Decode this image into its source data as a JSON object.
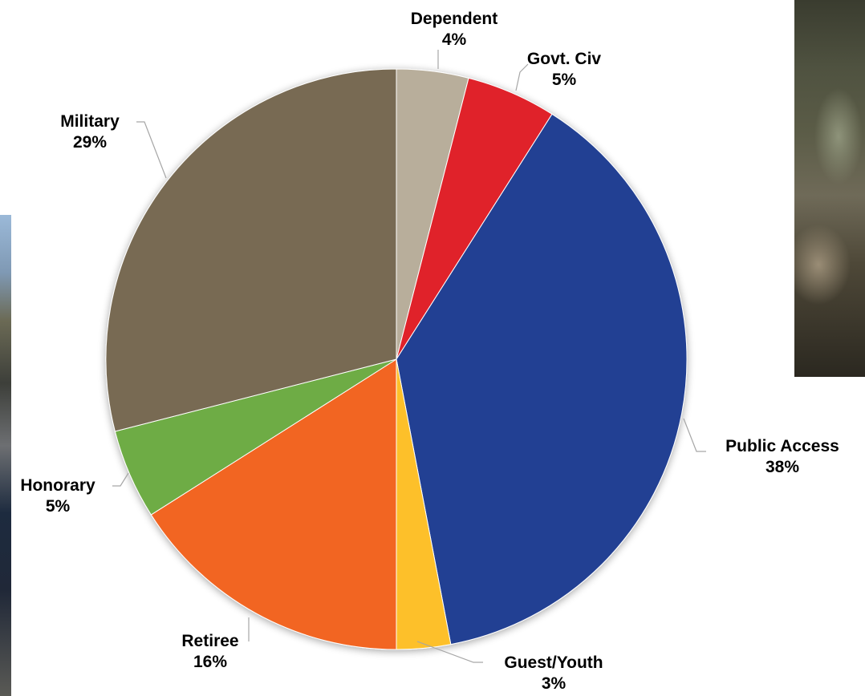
{
  "chart_data": {
    "type": "pie",
    "title": "",
    "slices": [
      {
        "label": "Dependent",
        "pct_label": "4%",
        "value": 4,
        "color": "#b8ae9b"
      },
      {
        "label": "Govt. Civ",
        "pct_label": "5%",
        "value": 5,
        "color": "#e0222a"
      },
      {
        "label": "Public Access",
        "pct_label": "38%",
        "value": 38,
        "color": "#234193"
      },
      {
        "label": "Guest/Youth",
        "pct_label": "3%",
        "value": 3,
        "color": "#fdc02a"
      },
      {
        "label": "Retiree",
        "pct_label": "16%",
        "value": 16,
        "color": "#f26522"
      },
      {
        "label": "Honorary",
        "pct_label": "5%",
        "value": 5,
        "color": "#6eac45"
      },
      {
        "label": "Military",
        "pct_label": "29%",
        "value": 29,
        "color": "#786b53"
      }
    ],
    "start_angle": "12 o'clock, clockwise",
    "legend": "none (data labels with leader lines)"
  },
  "background": {
    "left_photo": "outdoor-photo",
    "right_photo": "hunter-with-deer-photo"
  }
}
